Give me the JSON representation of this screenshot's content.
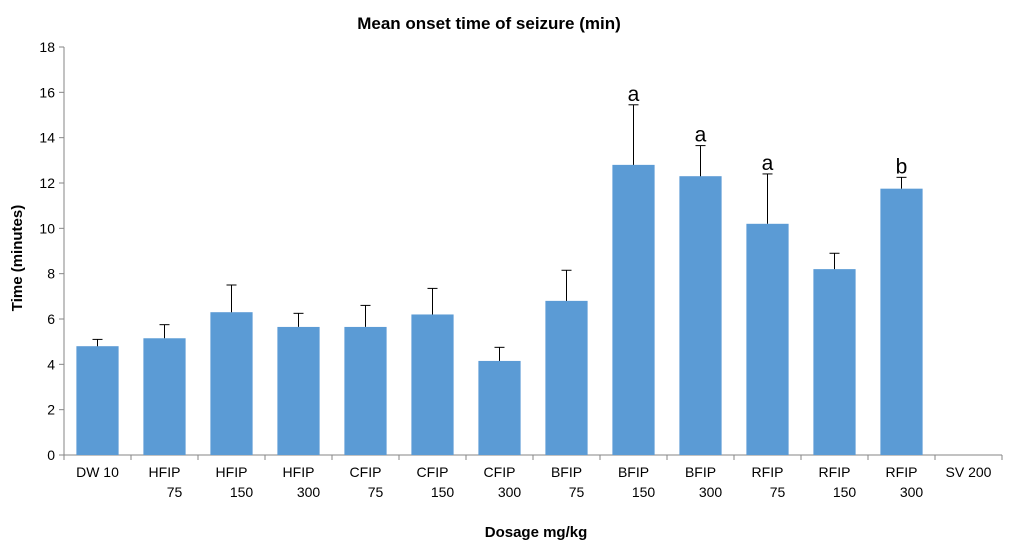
{
  "chart_data": {
    "type": "bar",
    "title": "Mean onset time of seizure (min)",
    "xlabel": "Dosage mg/kg",
    "ylabel": "Time (minutes)",
    "ylim": [
      0,
      18
    ],
    "yticks": [
      0,
      2,
      4,
      6,
      8,
      10,
      12,
      14,
      16,
      18
    ],
    "grid": false,
    "legend": "none",
    "bar_color": "#5b9bd5",
    "categories": [
      [
        "DW 10"
      ],
      [
        "HFIP",
        "75"
      ],
      [
        "HFIP",
        "150"
      ],
      [
        "HFIP",
        "300"
      ],
      [
        "CFIP",
        "75"
      ],
      [
        "CFIP",
        "150"
      ],
      [
        "CFIP",
        "300"
      ],
      [
        "BFIP",
        "75"
      ],
      [
        "BFIP",
        "150"
      ],
      [
        "BFIP",
        "300"
      ],
      [
        "RFIP",
        "75"
      ],
      [
        "RFIP",
        "150"
      ],
      [
        "RFIP",
        "300"
      ],
      [
        "SV 200"
      ]
    ],
    "values": [
      4.8,
      5.15,
      6.3,
      5.65,
      5.65,
      6.2,
      4.15,
      6.8,
      12.8,
      12.3,
      10.2,
      8.2,
      11.75,
      0
    ],
    "error": [
      0.3,
      0.6,
      1.2,
      0.6,
      0.95,
      1.15,
      0.6,
      1.35,
      2.65,
      1.35,
      2.2,
      0.7,
      0.5,
      0
    ],
    "annotations": [
      "",
      "",
      "",
      "",
      "",
      "",
      "",
      "",
      "a",
      "a",
      "a",
      "",
      "b",
      ""
    ]
  }
}
